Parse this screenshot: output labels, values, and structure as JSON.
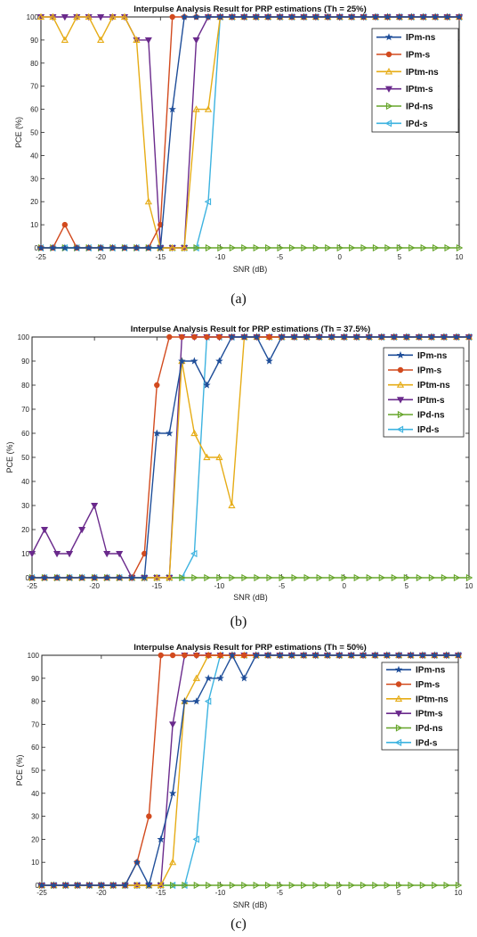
{
  "colors": {
    "IPm-ns": "#1f4e99",
    "IPm-s": "#d24a1e",
    "IPtm-ns": "#e6ac16",
    "IPtm-s": "#6a2a8c",
    "IPd-ns": "#66a52a",
    "IPd-s": "#3db3e0"
  },
  "markers": {
    "IPm-ns": "star",
    "IPm-s": "circle",
    "IPtm-ns": "triangle-up",
    "IPtm-s": "triangle-down",
    "IPd-ns": "triangle-right",
    "IPd-s": "triangle-left"
  },
  "chart_data": [
    {
      "type": "line",
      "title": "Interpulse Analysis Result for PRP estimations (Th = 25%)",
      "caption": "(a)",
      "xlabel": "SNR (dB)",
      "ylabel": "PCE (%)",
      "xlim": [
        -25,
        10
      ],
      "ylim": [
        0,
        100
      ],
      "xticks": [
        -25,
        -20,
        -15,
        -10,
        -5,
        0,
        5,
        10
      ],
      "yticks": [
        0,
        10,
        20,
        30,
        40,
        50,
        60,
        70,
        80,
        90,
        100
      ],
      "grid": false,
      "legend_position": "top-right",
      "x": [
        -25,
        -24,
        -23,
        -22,
        -21,
        -20,
        -19,
        -18,
        -17,
        -16,
        -15,
        -14,
        -13,
        -12,
        -11,
        -10,
        -9,
        -8,
        -7,
        -6,
        -5,
        -4,
        -3,
        -2,
        -1,
        0,
        1,
        2,
        3,
        4,
        5,
        6,
        7,
        8,
        9,
        10
      ],
      "series": [
        {
          "name": "IPm-ns",
          "values": [
            0,
            0,
            0,
            0,
            0,
            0,
            0,
            0,
            0,
            0,
            0,
            60,
            100,
            100,
            100,
            100,
            100,
            100,
            100,
            100,
            100,
            100,
            100,
            100,
            100,
            100,
            100,
            100,
            100,
            100,
            100,
            100,
            100,
            100,
            100,
            100
          ]
        },
        {
          "name": "IPm-s",
          "values": [
            0,
            0,
            10,
            0,
            0,
            0,
            0,
            0,
            0,
            0,
            10,
            100,
            100,
            100,
            100,
            100,
            100,
            100,
            100,
            100,
            100,
            100,
            100,
            100,
            100,
            100,
            100,
            100,
            100,
            100,
            100,
            100,
            100,
            100,
            100,
            100
          ]
        },
        {
          "name": "IPtm-ns",
          "values": [
            100,
            100,
            90,
            100,
            100,
            90,
            100,
            100,
            90,
            20,
            0,
            0,
            0,
            60,
            60,
            100,
            100,
            100,
            100,
            100,
            100,
            100,
            100,
            100,
            100,
            100,
            100,
            100,
            100,
            100,
            100,
            100,
            100,
            100,
            100,
            100
          ]
        },
        {
          "name": "IPtm-s",
          "values": [
            100,
            100,
            100,
            100,
            100,
            100,
            100,
            100,
            90,
            90,
            0,
            0,
            0,
            90,
            100,
            100,
            100,
            100,
            100,
            100,
            100,
            100,
            100,
            100,
            100,
            100,
            100,
            100,
            100,
            100,
            100,
            100,
            100,
            100,
            100,
            100
          ]
        },
        {
          "name": "IPd-ns",
          "values": [
            0,
            0,
            0,
            0,
            0,
            0,
            0,
            0,
            0,
            0,
            0,
            0,
            0,
            0,
            0,
            0,
            0,
            0,
            0,
            0,
            0,
            0,
            0,
            0,
            0,
            0,
            0,
            0,
            0,
            0,
            0,
            0,
            0,
            0,
            0,
            0
          ]
        },
        {
          "name": "IPd-s",
          "values": [
            0,
            0,
            0,
            0,
            0,
            0,
            0,
            0,
            0,
            0,
            0,
            0,
            0,
            0,
            20,
            100,
            100,
            100,
            100,
            100,
            100,
            100,
            100,
            100,
            100,
            100,
            100,
            100,
            100,
            100,
            100,
            100,
            100,
            100,
            100,
            100
          ]
        }
      ]
    },
    {
      "type": "line",
      "title": "Interpulse Analysis Result for PRP estimations (Th = 37.5%)",
      "caption": "(b)",
      "xlabel": "SNR (dB)",
      "ylabel": "PCE (%)",
      "xlim": [
        -25,
        10
      ],
      "ylim": [
        0,
        100
      ],
      "xticks": [
        -25,
        -20,
        -15,
        -10,
        -5,
        0,
        5,
        10
      ],
      "yticks": [
        0,
        10,
        20,
        30,
        40,
        50,
        60,
        70,
        80,
        90,
        100
      ],
      "grid": false,
      "legend_position": "right",
      "x": [
        -25,
        -24,
        -23,
        -22,
        -21,
        -20,
        -19,
        -18,
        -17,
        -16,
        -15,
        -14,
        -13,
        -12,
        -11,
        -10,
        -9,
        -8,
        -7,
        -6,
        -5,
        -4,
        -3,
        -2,
        -1,
        0,
        1,
        2,
        3,
        4,
        5,
        6,
        7,
        8,
        9,
        10
      ],
      "series": [
        {
          "name": "IPm-ns",
          "values": [
            0,
            0,
            0,
            0,
            0,
            0,
            0,
            0,
            0,
            0,
            60,
            60,
            90,
            90,
            80,
            90,
            100,
            100,
            100,
            90,
            100,
            100,
            100,
            100,
            100,
            100,
            100,
            100,
            100,
            100,
            100,
            100,
            100,
            100,
            100,
            100
          ]
        },
        {
          "name": "IPm-s",
          "values": [
            0,
            0,
            0,
            0,
            0,
            0,
            0,
            0,
            0,
            10,
            80,
            100,
            100,
            100,
            100,
            100,
            100,
            100,
            100,
            100,
            100,
            100,
            100,
            100,
            100,
            100,
            100,
            100,
            100,
            100,
            100,
            100,
            100,
            100,
            100,
            100
          ]
        },
        {
          "name": "IPtm-ns",
          "values": [
            0,
            0,
            0,
            0,
            0,
            0,
            0,
            0,
            0,
            0,
            0,
            0,
            90,
            60,
            50,
            50,
            30,
            100,
            100,
            100,
            100,
            100,
            100,
            100,
            100,
            100,
            100,
            100,
            100,
            100,
            100,
            100,
            100,
            100,
            100,
            100
          ]
        },
        {
          "name": "IPtm-s",
          "values": [
            10,
            20,
            10,
            10,
            20,
            30,
            10,
            10,
            0,
            0,
            0,
            0,
            100,
            100,
            100,
            100,
            100,
            100,
            100,
            100,
            100,
            100,
            100,
            100,
            100,
            100,
            100,
            100,
            100,
            100,
            100,
            100,
            100,
            100,
            100,
            100
          ]
        },
        {
          "name": "IPd-ns",
          "values": [
            0,
            0,
            0,
            0,
            0,
            0,
            0,
            0,
            0,
            0,
            0,
            0,
            0,
            0,
            0,
            0,
            0,
            0,
            0,
            0,
            0,
            0,
            0,
            0,
            0,
            0,
            0,
            0,
            0,
            0,
            0,
            0,
            0,
            0,
            0,
            0
          ]
        },
        {
          "name": "IPd-s",
          "values": [
            0,
            0,
            0,
            0,
            0,
            0,
            0,
            0,
            0,
            0,
            0,
            0,
            0,
            10,
            100,
            100,
            100,
            100,
            100,
            100,
            100,
            100,
            100,
            100,
            100,
            100,
            100,
            100,
            100,
            100,
            100,
            100,
            100,
            100,
            100,
            100
          ]
        }
      ]
    },
    {
      "type": "line",
      "title": "Interpulse Analysis Result for PRP estimations (Th = 50%)",
      "caption": "(c)",
      "xlabel": "SNR (dB)",
      "ylabel": "PCE (%)",
      "xlim": [
        -25,
        10
      ],
      "ylim": [
        0,
        100
      ],
      "xticks": [
        -25,
        -20,
        -15,
        -10,
        -5,
        0,
        5,
        10
      ],
      "yticks": [
        0,
        10,
        20,
        30,
        40,
        50,
        60,
        70,
        80,
        90,
        100
      ],
      "grid": false,
      "legend_position": "right",
      "x": [
        -25,
        -24,
        -23,
        -22,
        -21,
        -20,
        -19,
        -18,
        -17,
        -16,
        -15,
        -14,
        -13,
        -12,
        -11,
        -10,
        -9,
        -8,
        -7,
        -6,
        -5,
        -4,
        -3,
        -2,
        -1,
        0,
        1,
        2,
        3,
        4,
        5,
        6,
        7,
        8,
        9,
        10
      ],
      "series": [
        {
          "name": "IPm-ns",
          "values": [
            0,
            0,
            0,
            0,
            0,
            0,
            0,
            0,
            10,
            0,
            20,
            40,
            80,
            80,
            90,
            90,
            100,
            90,
            100,
            100,
            100,
            100,
            100,
            100,
            100,
            100,
            100,
            100,
            100,
            100,
            100,
            100,
            100,
            100,
            100,
            100
          ]
        },
        {
          "name": "IPm-s",
          "values": [
            0,
            0,
            0,
            0,
            0,
            0,
            0,
            0,
            10,
            30,
            100,
            100,
            100,
            100,
            100,
            100,
            100,
            100,
            100,
            100,
            100,
            100,
            100,
            100,
            100,
            100,
            100,
            100,
            100,
            100,
            100,
            100,
            100,
            100,
            100,
            100
          ]
        },
        {
          "name": "IPtm-ns",
          "values": [
            0,
            0,
            0,
            0,
            0,
            0,
            0,
            0,
            0,
            0,
            0,
            10,
            80,
            90,
            100,
            100,
            100,
            100,
            100,
            100,
            100,
            100,
            100,
            100,
            100,
            100,
            100,
            100,
            100,
            100,
            100,
            100,
            100,
            100,
            100,
            100
          ]
        },
        {
          "name": "IPtm-s",
          "values": [
            0,
            0,
            0,
            0,
            0,
            0,
            0,
            0,
            0,
            0,
            0,
            70,
            100,
            100,
            100,
            100,
            100,
            100,
            100,
            100,
            100,
            100,
            100,
            100,
            100,
            100,
            100,
            100,
            100,
            100,
            100,
            100,
            100,
            100,
            100,
            100
          ]
        },
        {
          "name": "IPd-ns",
          "values": [
            0,
            0,
            0,
            0,
            0,
            0,
            0,
            0,
            0,
            0,
            0,
            0,
            0,
            0,
            0,
            0,
            0,
            0,
            0,
            0,
            0,
            0,
            0,
            0,
            0,
            0,
            0,
            0,
            0,
            0,
            0,
            0,
            0,
            0,
            0,
            0
          ]
        },
        {
          "name": "IPd-s",
          "values": [
            0,
            0,
            0,
            0,
            0,
            0,
            0,
            0,
            0,
            0,
            0,
            0,
            0,
            20,
            80,
            100,
            100,
            100,
            100,
            100,
            100,
            100,
            100,
            100,
            100,
            100,
            100,
            100,
            100,
            100,
            100,
            100,
            100,
            100,
            100,
            100
          ]
        }
      ]
    }
  ]
}
